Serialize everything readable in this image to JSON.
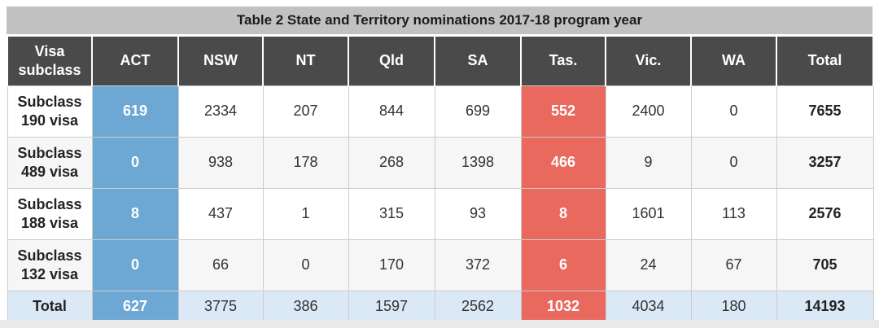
{
  "chart_data": {
    "type": "table",
    "title": "Table 2 State and Territory nominations 2017-18 program year",
    "columns": [
      "Visa subclass",
      "ACT",
      "NSW",
      "NT",
      "Qld",
      "SA",
      "Tas.",
      "Vic.",
      "WA",
      "Total"
    ],
    "rows": [
      {
        "label": "Subclass 190 visa",
        "values": [
          619,
          2334,
          207,
          844,
          699,
          552,
          2400,
          0,
          7655
        ]
      },
      {
        "label": "Subclass 489 visa",
        "values": [
          0,
          938,
          178,
          268,
          1398,
          466,
          9,
          0,
          3257
        ]
      },
      {
        "label": "Subclass 188 visa",
        "values": [
          8,
          437,
          1,
          315,
          93,
          8,
          1601,
          113,
          2576
        ]
      },
      {
        "label": "Subclass 132 visa",
        "values": [
          0,
          66,
          0,
          170,
          372,
          6,
          24,
          67,
          705
        ]
      }
    ],
    "total_row": {
      "label": "Total",
      "values": [
        627,
        3775,
        386,
        1597,
        2562,
        1032,
        4034,
        180,
        14193
      ]
    },
    "highlighted_columns": {
      "blue": "ACT",
      "red": "Tas."
    },
    "layout_hints": {
      "zebra_striping": true,
      "bold_total_column": true,
      "bold_row_labels": true
    }
  },
  "colors": {
    "title_bar_bg": "#c1c1c1",
    "header_bg": "#4a4a4a",
    "highlight_blue": "#6da7d4",
    "highlight_red": "#e9695f",
    "total_row_bg": "#dbe8f6",
    "cell_border": "#cccccc",
    "bottom_strip": "#e9e9ea"
  }
}
